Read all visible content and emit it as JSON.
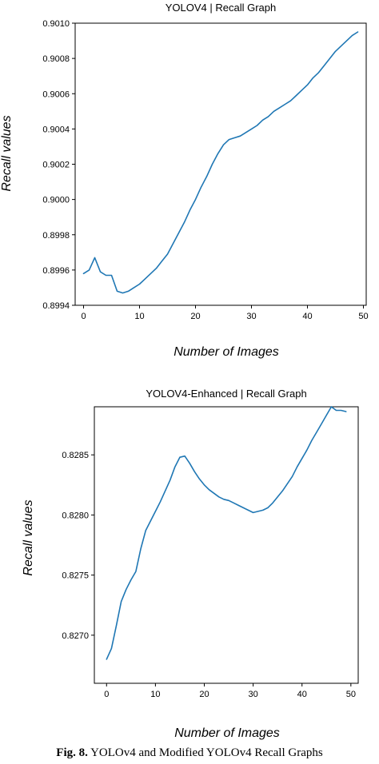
{
  "chart_data": [
    {
      "type": "line",
      "title": "YOLOV4 | Recall Graph",
      "xlabel": "Number of Images",
      "ylabel": "Recall values",
      "xlim": [
        -1.5,
        50.5
      ],
      "ylim": [
        0.8994,
        0.901
      ],
      "xticks": [
        0,
        10,
        20,
        30,
        40,
        50
      ],
      "yticks": [
        "0.8994",
        "0.8996",
        "0.8998",
        "0.9000",
        "0.9002",
        "0.9004",
        "0.9006",
        "0.9008",
        "0.9010"
      ],
      "grid": false,
      "series": [
        {
          "color": "#1f77b4",
          "x": [
            0,
            1,
            2,
            3,
            4,
            5,
            6,
            7,
            8,
            9,
            10,
            11,
            12,
            13,
            14,
            15,
            16,
            17,
            18,
            19,
            20,
            21,
            22,
            23,
            24,
            25,
            26,
            27,
            28,
            29,
            30,
            31,
            32,
            33,
            34,
            35,
            36,
            37,
            38,
            39,
            40,
            41,
            42,
            43,
            44,
            45,
            46,
            47,
            48,
            49
          ],
          "values": [
            0.89958,
            0.8996,
            0.89967,
            0.89959,
            0.89957,
            0.89957,
            0.89948,
            0.89947,
            0.89948,
            0.8995,
            0.89952,
            0.89955,
            0.89958,
            0.89961,
            0.89965,
            0.89969,
            0.89975,
            0.89981,
            0.89987,
            0.89994,
            0.9,
            0.90007,
            0.90013,
            0.9002,
            0.90026,
            0.90031,
            0.90034,
            0.90035,
            0.90036,
            0.90038,
            0.9004,
            0.90042,
            0.90045,
            0.90047,
            0.9005,
            0.90052,
            0.90054,
            0.90056,
            0.90059,
            0.90062,
            0.90065,
            0.90069,
            0.90072,
            0.90076,
            0.9008,
            0.90084,
            0.90087,
            0.9009,
            0.90093,
            0.90095
          ]
        }
      ]
    },
    {
      "type": "line",
      "title": "YOLOV4-Enhanced | Recall Graph",
      "xlabel": "Number of Images",
      "ylabel": "Recall values",
      "xlim": [
        -2.5,
        51.5
      ],
      "ylim": [
        0.8266,
        0.8289
      ],
      "xticks": [
        0,
        10,
        20,
        30,
        40,
        50
      ],
      "yticks": [
        "0.8270",
        "0.8275",
        "0.8280",
        "0.8285"
      ],
      "grid": false,
      "series": [
        {
          "color": "#1f77b4",
          "x": [
            0,
            1,
            2,
            3,
            4,
            5,
            6,
            7,
            8,
            9,
            10,
            11,
            12,
            13,
            14,
            15,
            16,
            17,
            18,
            19,
            20,
            21,
            22,
            23,
            24,
            25,
            26,
            27,
            28,
            29,
            30,
            31,
            32,
            33,
            34,
            35,
            36,
            37,
            38,
            39,
            40,
            41,
            42,
            43,
            44,
            45,
            46,
            47,
            48,
            49
          ],
          "values": [
            0.8268,
            0.82689,
            0.82708,
            0.82728,
            0.82738,
            0.82746,
            0.82753,
            0.82772,
            0.82787,
            0.82795,
            0.82803,
            0.82811,
            0.8282,
            0.82829,
            0.8284,
            0.82848,
            0.82849,
            0.82843,
            0.82836,
            0.8283,
            0.82825,
            0.82821,
            0.82818,
            0.82815,
            0.82813,
            0.82812,
            0.8281,
            0.82808,
            0.82806,
            0.82804,
            0.82802,
            0.82803,
            0.82804,
            0.82806,
            0.8281,
            0.82815,
            0.8282,
            0.82826,
            0.82832,
            0.8284,
            0.82847,
            0.82854,
            0.82862,
            0.82869,
            0.82876,
            0.82883,
            0.8289,
            0.82887,
            0.82887,
            0.82886
          ]
        }
      ]
    }
  ],
  "caption": {
    "label": "Fig. 8.",
    "text": " YOLOv4 and Modified YOLOv4 Recall Graphs"
  }
}
